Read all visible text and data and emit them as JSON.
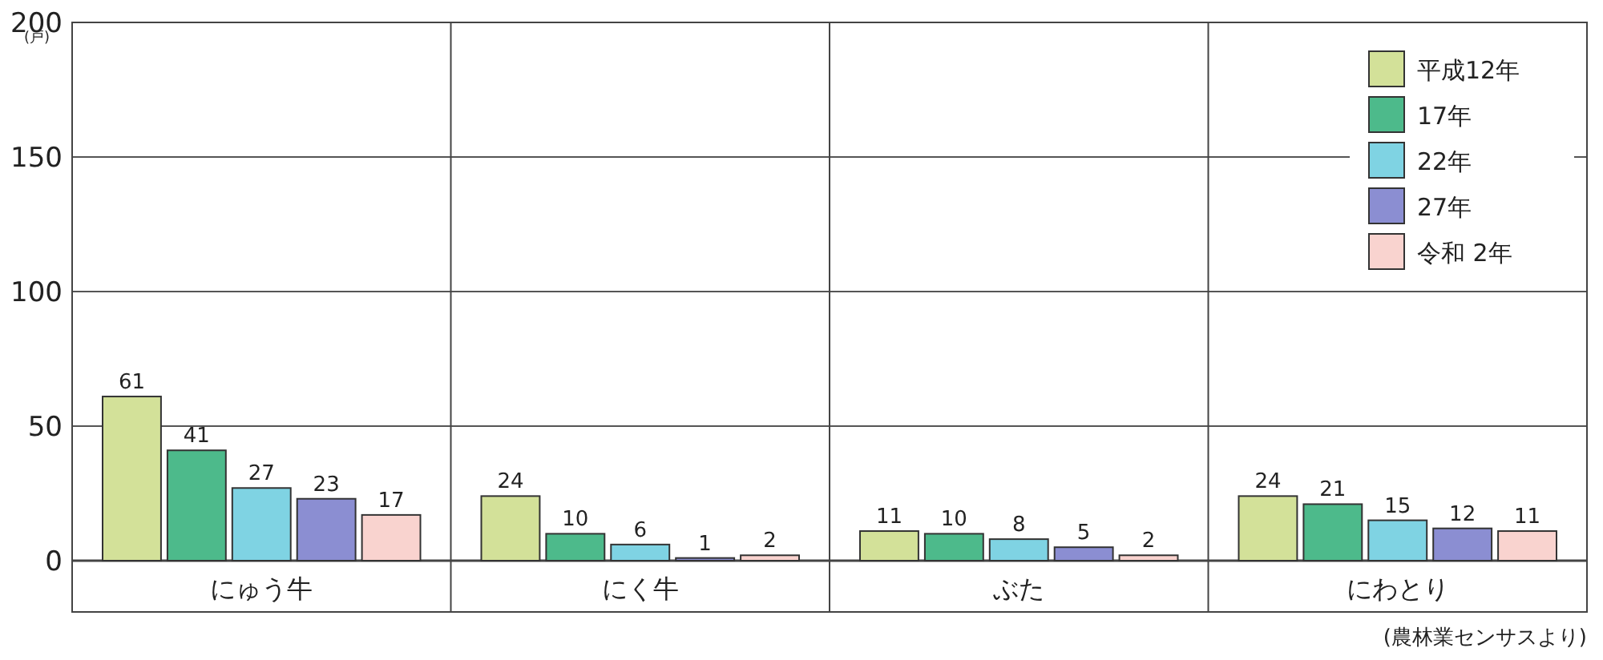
{
  "chart_data": {
    "type": "bar",
    "ylabel": "(戸)",
    "categories": [
      "にゅう牛",
      "にく牛",
      "ぶた",
      "にわとり"
    ],
    "series": [
      {
        "name": "平成12年",
        "color": "#d3e199",
        "values": [
          61,
          24,
          11,
          24
        ]
      },
      {
        "name": "17年",
        "color": "#4dba8b",
        "values": [
          41,
          10,
          10,
          21
        ]
      },
      {
        "name": "22年",
        "color": "#7fd3e3",
        "values": [
          27,
          6,
          8,
          15
        ]
      },
      {
        "name": "27年",
        "color": "#8b8ed2",
        "values": [
          23,
          1,
          5,
          12
        ]
      },
      {
        "name": "令和 2年",
        "color": "#f9d3cf",
        "values": [
          17,
          2,
          2,
          11
        ]
      }
    ],
    "ylim": [
      0,
      200
    ],
    "yticks": [
      0,
      50,
      100,
      150,
      200
    ],
    "grid": "y",
    "legend": "top right",
    "data_labels": true,
    "annotations": [
      "(農林業センサスより)"
    ]
  }
}
